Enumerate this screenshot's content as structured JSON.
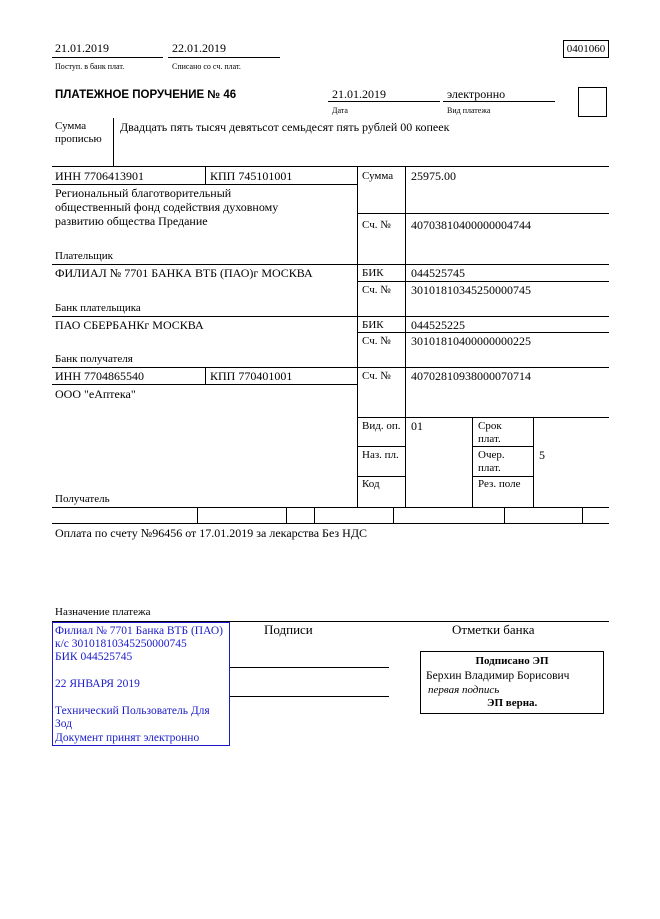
{
  "header": {
    "received_date": "21.01.2019",
    "received_label": "Поступ. в банк плат.",
    "debited_date": "22.01.2019",
    "debited_label": "Списано со сч. плат.",
    "form_code": "0401060"
  },
  "order": {
    "title": "ПЛАТЕЖНОЕ ПОРУЧЕНИЕ № 46",
    "date": "21.01.2019",
    "date_label": "Дата",
    "payment_type": "электронно",
    "payment_type_label": "Вид платежа"
  },
  "amount_words": {
    "label_line1": "Сумма",
    "label_line2": "прописью",
    "value": "Двадцать пять тысяч девятьсот семьдесят пять рублей 00 копеек"
  },
  "payer": {
    "inn": "ИНН 7706413901",
    "kpp": "КПП 745101001",
    "name_lines": [
      " Региональный благотворительный",
      "общественный фонд содействия духовному",
      "развитию общества Предание"
    ],
    "label": "Плательщик",
    "amount_label": "Сумма",
    "amount": "25975.00",
    "account_label": "Сч. №",
    "account": "40703810400000004744"
  },
  "payer_bank": {
    "name": "ФИЛИАЛ № 7701 БАНКА ВТБ (ПАО)г МОСКВА",
    "label": "Банк плательщика",
    "bik_label": "БИК",
    "bik": "044525745",
    "account_label": "Сч. №",
    "account": "30101810345250000745"
  },
  "payee_bank": {
    "name": "ПАО СБЕРБАНКг МОСКВА",
    "label": "Банк получателя",
    "bik_label": "БИК",
    "bik": "044525225",
    "account_label": "Сч. №",
    "account": "30101810400000000225"
  },
  "payee": {
    "inn": "ИНН 7704865540",
    "kpp": "КПП 770401001",
    "name": "ООО \"еАптека\"",
    "label": "Получатель",
    "account_label": "Сч. №",
    "account": "40702810938000070714"
  },
  "codes": {
    "op_type_label": "Вид. оп.",
    "op_type": "01",
    "purpose_code_label": "Наз. пл.",
    "code_label": "Код",
    "term_label_1": "Срок",
    "term_label_2": "плат.",
    "priority_label_1": "Очер.",
    "priority_label_2": "плат.",
    "priority": "5",
    "reserve_label": "Рез. поле"
  },
  "purpose": {
    "text": "Оплата по счету №96456 от 17.01.2019 за лекарства Без НДС",
    "label": "Назначение платежа"
  },
  "bank_stamp": {
    "color": "#1a1acc",
    "lines": [
      "Филиал № 7701 Банка ВТБ (ПАО)",
      "к/с 30101810345250000745",
      "БИК 044525745",
      "22 ЯНВАРЯ 2019",
      "Технический Пользователь Для",
      "Зод",
      "Документ принят электронно"
    ]
  },
  "signatures": {
    "label": "Подписи",
    "bank_marks_label": "Отметки банка"
  },
  "esign": {
    "title": "Подписано ЭП",
    "signer": "Берхин Владимир Борисович",
    "role": "первая подпись",
    "status": "ЭП верна."
  }
}
